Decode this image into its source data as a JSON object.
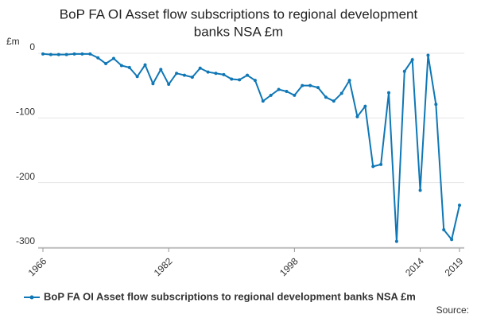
{
  "chart_data": {
    "type": "line",
    "title": [
      "BoP FA OI Asset flow subscriptions to regional development",
      "banks NSA £m"
    ],
    "y_label": "£m",
    "source": "Source:",
    "x": [
      1966,
      1967,
      1968,
      1969,
      1970,
      1971,
      1972,
      1973,
      1974,
      1975,
      1976,
      1977,
      1978,
      1979,
      1980,
      1981,
      1982,
      1983,
      1984,
      1985,
      1986,
      1987,
      1988,
      1989,
      1990,
      1991,
      1992,
      1993,
      1994,
      1995,
      1996,
      1997,
      1998,
      1999,
      2000,
      2001,
      2002,
      2003,
      2004,
      2005,
      2006,
      2007,
      2008,
      2009,
      2010,
      2011,
      2012,
      2013,
      2014,
      2015,
      2016,
      2017,
      2018,
      2019
    ],
    "series": [
      {
        "name": "BoP FA OI Asset flow subscriptions to regional development banks NSA £m",
        "color": "#0f77b5",
        "values": [
          -1,
          -2,
          -2,
          -2,
          -1,
          -1,
          -1,
          -7,
          -16,
          -8,
          -19,
          -22,
          -36,
          -18,
          -47,
          -25,
          -48,
          -31,
          -34,
          -37,
          -23,
          -29,
          -31,
          -33,
          -40,
          -41,
          -34,
          -42,
          -74,
          -65,
          -56,
          -59,
          -65,
          -50,
          -50,
          -53,
          -68,
          -74,
          -62,
          -42,
          -98,
          -82,
          -175,
          -172,
          -61,
          -291,
          -28,
          -10,
          -212,
          -3,
          -79,
          -273,
          -288,
          -235
        ]
      }
    ],
    "xlim": [
      1966,
      2019
    ],
    "xticks": [
      1966,
      1982,
      1998,
      2014,
      2019
    ],
    "ylim": [
      -300,
      0
    ],
    "yticks": [
      0,
      -100,
      -200,
      -300
    ],
    "grid": true
  }
}
